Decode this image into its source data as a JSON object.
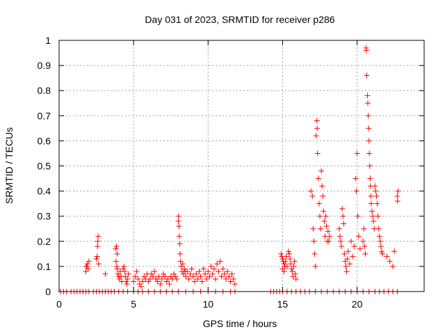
{
  "chart_data": {
    "type": "scatter",
    "title": "Day 031 of 2023, SRMTID for receiver p286",
    "xlabel": "GPS time / hours",
    "ylabel": "SRMTID / TECUs",
    "xlim": [
      0,
      24.5
    ],
    "ylim": [
      0,
      1
    ],
    "xticks": [
      0,
      5,
      10,
      15,
      20
    ],
    "xtick_labels": [
      "0",
      "5",
      "10",
      "15",
      "20"
    ],
    "yticks": [
      0,
      0.1,
      0.2,
      0.3,
      0.4,
      0.5,
      0.6,
      0.7,
      0.8,
      0.9,
      1
    ],
    "ytick_labels": [
      "0",
      "0.1",
      "0.2",
      "0.3",
      "0.4",
      "0.5",
      "0.6",
      "0.7",
      "0.8",
      "0.9",
      "1"
    ],
    "grid": true,
    "marker": "+",
    "color": "#ff0000",
    "series": [
      {
        "name": "SRMTID",
        "points": [
          [
            0.1,
            0
          ],
          [
            0.3,
            0
          ],
          [
            0.5,
            0
          ],
          [
            0.8,
            0
          ],
          [
            1.0,
            0
          ],
          [
            1.2,
            0
          ],
          [
            1.4,
            0
          ],
          [
            1.6,
            0
          ],
          [
            1.8,
            0
          ],
          [
            2.0,
            0
          ],
          [
            2.3,
            0
          ],
          [
            2.5,
            0
          ],
          [
            2.7,
            0
          ],
          [
            2.9,
            0
          ],
          [
            3.1,
            0
          ],
          [
            3.3,
            0
          ],
          [
            3.5,
            0
          ],
          [
            3.7,
            0
          ],
          [
            4.0,
            0
          ],
          [
            4.3,
            0
          ],
          [
            4.6,
            0
          ],
          [
            5.0,
            0
          ],
          [
            5.3,
            0
          ],
          [
            5.6,
            0
          ],
          [
            6.0,
            0
          ],
          [
            6.4,
            0
          ],
          [
            6.8,
            0
          ],
          [
            7.2,
            0
          ],
          [
            7.6,
            0
          ],
          [
            8.0,
            0
          ],
          [
            8.5,
            0
          ],
          [
            9.0,
            0
          ],
          [
            9.5,
            0
          ],
          [
            10.0,
            0
          ],
          [
            10.5,
            0
          ],
          [
            11.0,
            0
          ],
          [
            11.5,
            0
          ],
          [
            11.8,
            0
          ],
          [
            14.2,
            0
          ],
          [
            14.4,
            0
          ],
          [
            14.6,
            0
          ],
          [
            14.8,
            0
          ],
          [
            15.0,
            0
          ],
          [
            15.3,
            0
          ],
          [
            15.6,
            0
          ],
          [
            15.9,
            0
          ],
          [
            16.2,
            0
          ],
          [
            16.5,
            0
          ],
          [
            16.8,
            0
          ],
          [
            17.2,
            0
          ],
          [
            17.6,
            0
          ],
          [
            18.0,
            0
          ],
          [
            18.4,
            0
          ],
          [
            18.8,
            0
          ],
          [
            19.2,
            0
          ],
          [
            19.6,
            0
          ],
          [
            20.0,
            0
          ],
          [
            20.4,
            0
          ],
          [
            20.8,
            0
          ],
          [
            21.2,
            0
          ],
          [
            21.5,
            0
          ],
          [
            21.8,
            0
          ],
          [
            22.1,
            0
          ],
          [
            22.4,
            0
          ],
          [
            22.7,
            0
          ],
          [
            1.8,
            0.08
          ],
          [
            1.85,
            0.1
          ],
          [
            1.9,
            0.11
          ],
          [
            1.95,
            0.09
          ],
          [
            2.0,
            0.12
          ],
          [
            1.82,
            0.1
          ],
          [
            2.5,
            0.13
          ],
          [
            2.55,
            0.14
          ],
          [
            2.6,
            0.2
          ],
          [
            2.62,
            0.22
          ],
          [
            2.58,
            0.18
          ],
          [
            2.65,
            0.11
          ],
          [
            3.1,
            0.07
          ],
          [
            3.8,
            0.17
          ],
          [
            3.85,
            0.18
          ],
          [
            3.9,
            0.15
          ],
          [
            3.82,
            0.12
          ],
          [
            3.88,
            0.1
          ],
          [
            3.9,
            0.09
          ],
          [
            3.95,
            0.07
          ],
          [
            4.0,
            0.06
          ],
          [
            4.05,
            0.05
          ],
          [
            4.1,
            0.08
          ],
          [
            4.15,
            0.06
          ],
          [
            4.2,
            0.04
          ],
          [
            4.3,
            0.09
          ],
          [
            4.35,
            0.1
          ],
          [
            4.4,
            0.08
          ],
          [
            4.45,
            0.06
          ],
          [
            4.5,
            0.04
          ],
          [
            4.55,
            0.03
          ],
          [
            4.6,
            0.05
          ],
          [
            4.65,
            0.07
          ],
          [
            5.0,
            0.04
          ],
          [
            5.1,
            0.06
          ],
          [
            5.2,
            0.08
          ],
          [
            5.3,
            0.05
          ],
          [
            5.4,
            0.03
          ],
          [
            5.5,
            0.02
          ],
          [
            5.6,
            0.04
          ],
          [
            5.7,
            0.06
          ],
          [
            5.8,
            0.05
          ],
          [
            5.9,
            0.07
          ],
          [
            6.0,
            0.04
          ],
          [
            6.1,
            0.05
          ],
          [
            6.2,
            0.07
          ],
          [
            6.3,
            0.06
          ],
          [
            6.4,
            0.08
          ],
          [
            6.5,
            0.05
          ],
          [
            6.6,
            0.04
          ],
          [
            6.7,
            0.06
          ],
          [
            6.8,
            0.03
          ],
          [
            6.9,
            0.05
          ],
          [
            7.0,
            0.07
          ],
          [
            7.1,
            0.06
          ],
          [
            7.2,
            0.04
          ],
          [
            7.3,
            0.05
          ],
          [
            7.4,
            0.03
          ],
          [
            7.5,
            0.06
          ],
          [
            7.6,
            0.05
          ],
          [
            7.7,
            0.07
          ],
          [
            7.8,
            0.06
          ],
          [
            7.9,
            0.05
          ],
          [
            8.0,
            0.28
          ],
          [
            8.02,
            0.3
          ],
          [
            8.05,
            0.26
          ],
          [
            8.07,
            0.22
          ],
          [
            8.1,
            0.19
          ],
          [
            8.12,
            0.15
          ],
          [
            8.15,
            0.12
          ],
          [
            8.2,
            0.1
          ],
          [
            8.25,
            0.08
          ],
          [
            8.3,
            0.11
          ],
          [
            8.35,
            0.07
          ],
          [
            8.4,
            0.09
          ],
          [
            8.45,
            0.08
          ],
          [
            8.5,
            0.06
          ],
          [
            8.6,
            0.08
          ],
          [
            8.7,
            0.05
          ],
          [
            8.8,
            0.07
          ],
          [
            8.9,
            0.09
          ],
          [
            9.0,
            0.06
          ],
          [
            9.1,
            0.04
          ],
          [
            9.2,
            0.07
          ],
          [
            9.3,
            0.05
          ],
          [
            9.4,
            0.08
          ],
          [
            9.5,
            0.06
          ],
          [
            9.6,
            0.04
          ],
          [
            9.7,
            0.09
          ],
          [
            9.8,
            0.07
          ],
          [
            9.9,
            0.05
          ],
          [
            10.0,
            0.08
          ],
          [
            10.1,
            0.06
          ],
          [
            10.2,
            0.1
          ],
          [
            10.3,
            0.07
          ],
          [
            10.4,
            0.09
          ],
          [
            10.5,
            0.05
          ],
          [
            10.6,
            0.11
          ],
          [
            10.7,
            0.08
          ],
          [
            10.8,
            0.12
          ],
          [
            10.9,
            0.06
          ],
          [
            11.0,
            0.09
          ],
          [
            11.1,
            0.07
          ],
          [
            11.2,
            0.05
          ],
          [
            11.3,
            0.08
          ],
          [
            11.4,
            0.06
          ],
          [
            11.5,
            0.04
          ],
          [
            11.6,
            0.07
          ],
          [
            11.7,
            0.05
          ],
          [
            11.8,
            0.03
          ],
          [
            14.9,
            0.15
          ],
          [
            14.95,
            0.14
          ],
          [
            15.0,
            0.13
          ],
          [
            15.05,
            0.12
          ],
          [
            15.1,
            0.11
          ],
          [
            15.15,
            0.1
          ],
          [
            15.0,
            0.09
          ],
          [
            15.1,
            0.08
          ],
          [
            15.2,
            0.12
          ],
          [
            15.25,
            0.14
          ],
          [
            15.3,
            0.1
          ],
          [
            15.4,
            0.16
          ],
          [
            15.45,
            0.15
          ],
          [
            15.5,
            0.13
          ],
          [
            15.55,
            0.11
          ],
          [
            15.6,
            0.09
          ],
          [
            15.65,
            0.08
          ],
          [
            15.7,
            0.06
          ],
          [
            15.75,
            0.1
          ],
          [
            15.8,
            0.12
          ],
          [
            15.85,
            0.07
          ],
          [
            15.9,
            0.05
          ],
          [
            16.9,
            0.4
          ],
          [
            17.0,
            0.38
          ],
          [
            17.05,
            0.25
          ],
          [
            17.1,
            0.2
          ],
          [
            17.15,
            0.15
          ],
          [
            17.2,
            0.1
          ],
          [
            17.25,
            0.62
          ],
          [
            17.3,
            0.68
          ],
          [
            17.32,
            0.65
          ],
          [
            17.35,
            0.55
          ],
          [
            17.4,
            0.45
          ],
          [
            17.45,
            0.35
          ],
          [
            17.5,
            0.3
          ],
          [
            17.55,
            0.25
          ],
          [
            17.6,
            0.48
          ],
          [
            17.65,
            0.42
          ],
          [
            17.7,
            0.38
          ],
          [
            17.75,
            0.32
          ],
          [
            17.8,
            0.28
          ],
          [
            17.85,
            0.22
          ],
          [
            17.9,
            0.3
          ],
          [
            17.95,
            0.26
          ],
          [
            18.0,
            0.2
          ],
          [
            18.05,
            0.24
          ],
          [
            18.1,
            0.2
          ],
          [
            18.15,
            0.22
          ],
          [
            18.8,
            0.25
          ],
          [
            18.85,
            0.22
          ],
          [
            18.9,
            0.2
          ],
          [
            18.95,
            0.18
          ],
          [
            19.0,
            0.33
          ],
          [
            19.05,
            0.3
          ],
          [
            19.1,
            0.27
          ],
          [
            19.15,
            0.15
          ],
          [
            19.2,
            0.12
          ],
          [
            19.25,
            0.1
          ],
          [
            19.3,
            0.08
          ],
          [
            19.35,
            0.13
          ],
          [
            19.4,
            0.16
          ],
          [
            19.5,
            0.11
          ],
          [
            19.6,
            0.2
          ],
          [
            19.7,
            0.14
          ],
          [
            19.8,
            0.18
          ],
          [
            19.9,
            0.45
          ],
          [
            19.95,
            0.4
          ],
          [
            20.0,
            0.55
          ],
          [
            20.05,
            0.3
          ],
          [
            20.1,
            0.22
          ],
          [
            20.2,
            0.17
          ],
          [
            20.4,
            0.2
          ],
          [
            20.45,
            0.25
          ],
          [
            20.5,
            0.18
          ],
          [
            20.55,
            0.15
          ],
          [
            20.6,
            0.97
          ],
          [
            20.62,
            0.96
          ],
          [
            20.65,
            0.86
          ],
          [
            20.7,
            0.78
          ],
          [
            20.72,
            0.75
          ],
          [
            20.75,
            0.7
          ],
          [
            20.78,
            0.65
          ],
          [
            20.8,
            0.6
          ],
          [
            20.82,
            0.55
          ],
          [
            20.85,
            0.5
          ],
          [
            20.88,
            0.45
          ],
          [
            20.9,
            0.42
          ],
          [
            20.92,
            0.38
          ],
          [
            20.95,
            0.35
          ],
          [
            21.0,
            0.32
          ],
          [
            21.05,
            0.3
          ],
          [
            21.1,
            0.28
          ],
          [
            21.15,
            0.25
          ],
          [
            21.2,
            0.42
          ],
          [
            21.25,
            0.4
          ],
          [
            21.3,
            0.38
          ],
          [
            21.35,
            0.35
          ],
          [
            21.4,
            0.3
          ],
          [
            21.45,
            0.25
          ],
          [
            21.5,
            0.22
          ],
          [
            21.55,
            0.2
          ],
          [
            21.6,
            0.18
          ],
          [
            21.65,
            0.16
          ],
          [
            21.7,
            0.15
          ],
          [
            22.0,
            0.14
          ],
          [
            22.2,
            0.12
          ],
          [
            22.4,
            0.1
          ],
          [
            22.5,
            0.16
          ],
          [
            22.7,
            0.38
          ],
          [
            22.75,
            0.4
          ],
          [
            22.72,
            0.36
          ]
        ]
      }
    ]
  }
}
